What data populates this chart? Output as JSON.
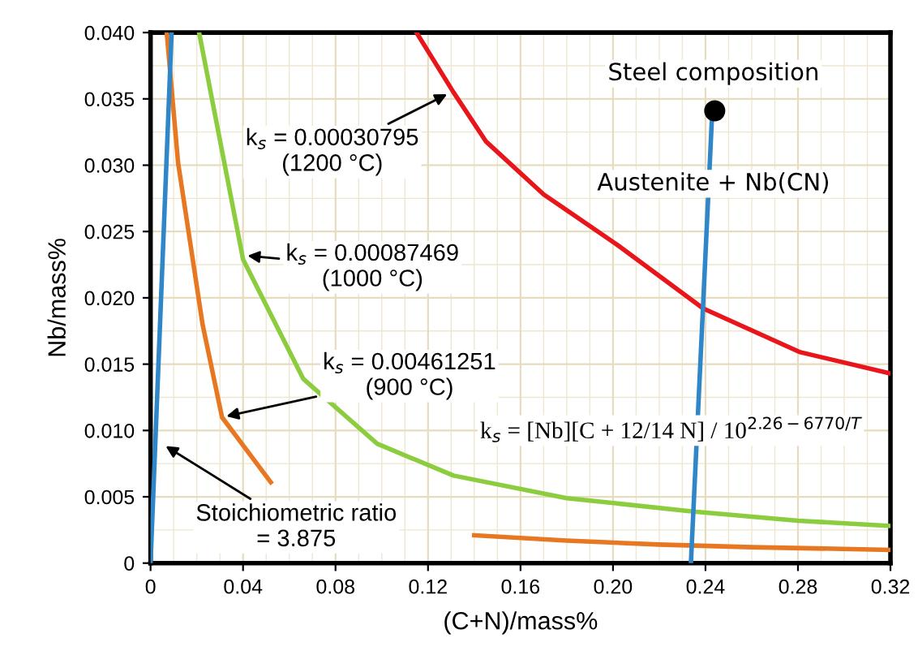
{
  "chart_data": {
    "type": "line",
    "xlabel": "(C+N)/mass%",
    "ylabel": "Nb/mass%",
    "xlim": [
      0,
      0.32
    ],
    "xticks": [
      0,
      {
        "value": 0.04,
        "label": "0.04"
      },
      {
        "value": 0.08,
        "label": "0.08"
      },
      {
        "value": 0.12,
        "label": "0.12"
      },
      {
        "value": 0.16,
        "label": "0.16"
      },
      {
        "value": 0.2,
        "label": "0.20"
      },
      {
        "value": 0.24,
        "label": "0.24"
      },
      {
        "value": 0.28,
        "label": "0.28"
      },
      {
        "value": 0.32,
        "label": "0.32"
      }
    ],
    "ylim": [
      0,
      0.04
    ],
    "yticks": [
      0,
      {
        "value": 0.005,
        "label": "0.005"
      },
      {
        "value": 0.01,
        "label": "0.010"
      },
      {
        "value": 0.015,
        "label": "0.015"
      },
      {
        "value": 0.02,
        "label": "0.020"
      },
      {
        "value": 0.025,
        "label": "0.025"
      },
      {
        "value": 0.03,
        "label": "0.030"
      },
      {
        "value": 0.035,
        "label": "0.035"
      },
      {
        "value": 0.04,
        "label": "0.040"
      }
    ],
    "grid": true,
    "series": [
      {
        "color": "#e87722",
        "x": [
          0.007,
          0.0119,
          0.0225,
          0.0309,
          0.052,
          0.09,
          0.14,
          0.18,
          0.22,
          0.26,
          0.32
        ],
        "values": [
          0.04,
          0.0302,
          0.018,
          0.011,
          0.0061,
          null,
          0.0021,
          0.0017,
          0.0014,
          0.0012,
          0.001
        ]
      },
      {
        "color": "#8ccc3f",
        "x": [
          0.021,
          0.04,
          0.066,
          0.098,
          0.131,
          0.18,
          0.234,
          0.28,
          0.32
        ],
        "values": [
          0.04,
          0.0229,
          0.0139,
          0.009,
          0.0066,
          0.0049,
          0.0039,
          0.0032,
          0.0028
        ]
      },
      {
        "color": "#e8151b",
        "x": [
          0.115,
          0.131,
          0.145,
          0.17,
          0.201,
          0.239,
          0.281,
          0.32
        ],
        "values": [
          0.04,
          0.0355,
          0.0318,
          0.0278,
          0.0241,
          0.0192,
          0.0159,
          0.0143
        ]
      },
      {
        "color": "#2f86c8",
        "x": [
          0,
          0.0091
        ],
        "values": [
          0,
          0.04
        ]
      },
      {
        "color": "#2f86c8",
        "x": [
          0.2337,
          0.2428
        ],
        "values": [
          0,
          0.0336
        ]
      },
      {
        "type": "scatter",
        "color": "#000000",
        "marker": "circle",
        "x": [
          0.244
        ],
        "values": [
          0.0341
        ]
      }
    ],
    "annotations": [
      {
        "text": "k$_{s}$ = 0.00030795\n(1200 °C)",
        "x": 0.13,
        "y": 0.0355
      },
      {
        "text": "k$_{s}$ = 0.00087469\n(1000 °C)",
        "x": 0.04,
        "y": 0.0232
      },
      {
        "text": "k$_{s}$ = 0.00461251\n(900 °C)",
        "x": 0.0309,
        "y": 0.011
      },
      {
        "text": "Stoichiometric ratio\n= 3.875",
        "x": 0.0049,
        "y": 0.009
      },
      "Steel composition",
      "Austenite + Nb(CN)",
      "k$_{s}$ = [Nb][C + 12/14 N] / 10$^{2.26−6770/T}$"
    ]
  }
}
